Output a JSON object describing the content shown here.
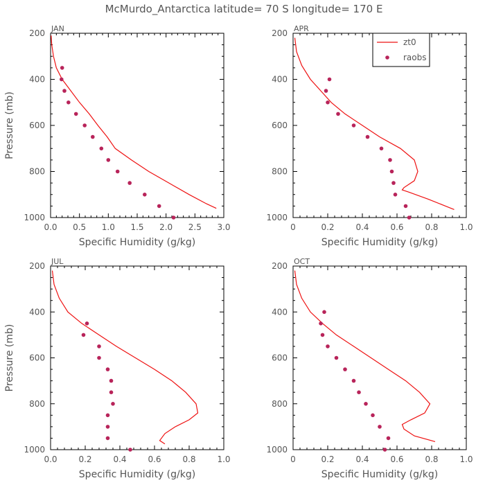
{
  "chart_data": {
    "title": "McMurdo_Antarctica  latitude= 70 S longitude= 170 E",
    "colors": {
      "model": "#ee1111",
      "obs": "#b8245a"
    },
    "legend": {
      "position": "top-right",
      "panel": 1,
      "entries": [
        "zt0",
        "raobs"
      ]
    },
    "panels": [
      {
        "type": "line+scatter",
        "label": "JAN",
        "xlabel": "Specific Humidity (g/kg)",
        "ylabel": "Pressure (mb)",
        "xlim": [
          0,
          3.0
        ],
        "ylim": [
          200,
          1000
        ],
        "y_reversed": true,
        "xticks": [
          "0.0",
          "0.5",
          "1.0",
          "1.5",
          "2.0",
          "2.5",
          "3.0"
        ],
        "yticks": [
          "200",
          "400",
          "600",
          "800",
          "1000"
        ],
        "series": [
          {
            "name": "zt0",
            "type": "line",
            "points": [
              [
                0.01,
                210
              ],
              [
                0.02,
                250
              ],
              [
                0.05,
                300
              ],
              [
                0.1,
                350
              ],
              [
                0.2,
                400
              ],
              [
                0.35,
                450
              ],
              [
                0.5,
                500
              ],
              [
                0.67,
                550
              ],
              [
                0.82,
                600
              ],
              [
                0.98,
                650
              ],
              [
                1.12,
                700
              ],
              [
                1.4,
                750
              ],
              [
                1.7,
                800
              ],
              [
                2.05,
                850
              ],
              [
                2.4,
                900
              ],
              [
                2.7,
                940
              ],
              [
                2.87,
                960
              ]
            ]
          },
          {
            "name": "raobs",
            "type": "scatter",
            "points": [
              [
                0.2,
                350
              ],
              [
                0.19,
                400
              ],
              [
                0.24,
                450
              ],
              [
                0.31,
                500
              ],
              [
                0.44,
                550
              ],
              [
                0.59,
                600
              ],
              [
                0.73,
                650
              ],
              [
                0.88,
                700
              ],
              [
                1.0,
                750
              ],
              [
                1.16,
                800
              ],
              [
                1.37,
                850
              ],
              [
                1.63,
                900
              ],
              [
                1.88,
                950
              ],
              [
                2.13,
                1000
              ]
            ]
          }
        ]
      },
      {
        "type": "line+scatter",
        "label": "APR",
        "xlabel": "Specific Humidity (g/kg)",
        "ylabel": "",
        "xlim": [
          0,
          1.0
        ],
        "ylim": [
          200,
          1000
        ],
        "y_reversed": true,
        "xticks": [
          "0",
          "0.2",
          "0.4",
          "0.6",
          "0.8",
          "1.0"
        ],
        "yticks": [
          "200",
          "400",
          "600",
          "800",
          "1000"
        ],
        "series": [
          {
            "name": "zt0",
            "type": "line",
            "points": [
              [
                0.01,
                220
              ],
              [
                0.02,
                280
              ],
              [
                0.05,
                340
              ],
              [
                0.1,
                400
              ],
              [
                0.16,
                450
              ],
              [
                0.22,
                500
              ],
              [
                0.3,
                550
              ],
              [
                0.4,
                600
              ],
              [
                0.5,
                650
              ],
              [
                0.62,
                700
              ],
              [
                0.7,
                750
              ],
              [
                0.72,
                800
              ],
              [
                0.7,
                840
              ],
              [
                0.64,
                870
              ],
              [
                0.63,
                880
              ],
              [
                0.67,
                890
              ],
              [
                0.78,
                920
              ],
              [
                0.88,
                950
              ],
              [
                0.93,
                965
              ]
            ]
          },
          {
            "name": "raobs",
            "type": "scatter",
            "points": [
              [
                0.21,
                400
              ],
              [
                0.19,
                450
              ],
              [
                0.2,
                500
              ],
              [
                0.26,
                550
              ],
              [
                0.35,
                600
              ],
              [
                0.43,
                650
              ],
              [
                0.51,
                700
              ],
              [
                0.56,
                750
              ],
              [
                0.57,
                800
              ],
              [
                0.58,
                850
              ],
              [
                0.59,
                900
              ],
              [
                0.65,
                950
              ],
              [
                0.67,
                1000
              ]
            ]
          }
        ]
      },
      {
        "type": "line+scatter",
        "label": "JUL",
        "xlabel": "Specific Humidity (g/kg)",
        "ylabel": "Pressure (mb)",
        "xlim": [
          0,
          1.0
        ],
        "ylim": [
          200,
          1000
        ],
        "y_reversed": true,
        "xticks": [
          "0.0",
          "0.2",
          "0.4",
          "0.6",
          "0.8",
          "1.0"
        ],
        "yticks": [
          "200",
          "400",
          "600",
          "800",
          "1000"
        ],
        "series": [
          {
            "name": "zt0",
            "type": "line",
            "points": [
              [
                0.01,
                220
              ],
              [
                0.02,
                280
              ],
              [
                0.05,
                340
              ],
              [
                0.1,
                400
              ],
              [
                0.18,
                450
              ],
              [
                0.28,
                500
              ],
              [
                0.38,
                550
              ],
              [
                0.49,
                600
              ],
              [
                0.6,
                650
              ],
              [
                0.7,
                700
              ],
              [
                0.78,
                750
              ],
              [
                0.84,
                800
              ],
              [
                0.85,
                840
              ],
              [
                0.8,
                870
              ],
              [
                0.72,
                900
              ],
              [
                0.66,
                930
              ],
              [
                0.63,
                960
              ],
              [
                0.66,
                975
              ]
            ]
          },
          {
            "name": "raobs",
            "type": "scatter",
            "points": [
              [
                0.21,
                450
              ],
              [
                0.19,
                500
              ],
              [
                0.28,
                550
              ],
              [
                0.28,
                600
              ],
              [
                0.33,
                650
              ],
              [
                0.35,
                700
              ],
              [
                0.35,
                750
              ],
              [
                0.36,
                800
              ],
              [
                0.33,
                850
              ],
              [
                0.33,
                900
              ],
              [
                0.33,
                950
              ],
              [
                0.46,
                1000
              ]
            ]
          }
        ]
      },
      {
        "type": "line+scatter",
        "label": "OCT",
        "xlabel": "Specific Humidity (g/kg)",
        "ylabel": "",
        "xlim": [
          0,
          1.0
        ],
        "ylim": [
          200,
          1000
        ],
        "y_reversed": true,
        "xticks": [
          "0",
          "0.2",
          "0.4",
          "0.6",
          "0.8",
          "1.0"
        ],
        "yticks": [
          "200",
          "400",
          "600",
          "800",
          "1000"
        ],
        "series": [
          {
            "name": "zt0",
            "type": "line",
            "points": [
              [
                0.01,
                220
              ],
              [
                0.02,
                280
              ],
              [
                0.05,
                340
              ],
              [
                0.1,
                400
              ],
              [
                0.17,
                450
              ],
              [
                0.25,
                500
              ],
              [
                0.35,
                550
              ],
              [
                0.45,
                600
              ],
              [
                0.55,
                650
              ],
              [
                0.65,
                700
              ],
              [
                0.73,
                750
              ],
              [
                0.79,
                800
              ],
              [
                0.76,
                840
              ],
              [
                0.68,
                870
              ],
              [
                0.63,
                890
              ],
              [
                0.64,
                910
              ],
              [
                0.7,
                940
              ],
              [
                0.82,
                965
              ]
            ]
          },
          {
            "name": "raobs",
            "type": "scatter",
            "points": [
              [
                0.18,
                400
              ],
              [
                0.16,
                450
              ],
              [
                0.17,
                500
              ],
              [
                0.2,
                550
              ],
              [
                0.25,
                600
              ],
              [
                0.3,
                650
              ],
              [
                0.35,
                700
              ],
              [
                0.38,
                750
              ],
              [
                0.42,
                800
              ],
              [
                0.46,
                850
              ],
              [
                0.5,
                900
              ],
              [
                0.55,
                950
              ],
              [
                0.53,
                1000
              ]
            ]
          }
        ]
      }
    ]
  }
}
